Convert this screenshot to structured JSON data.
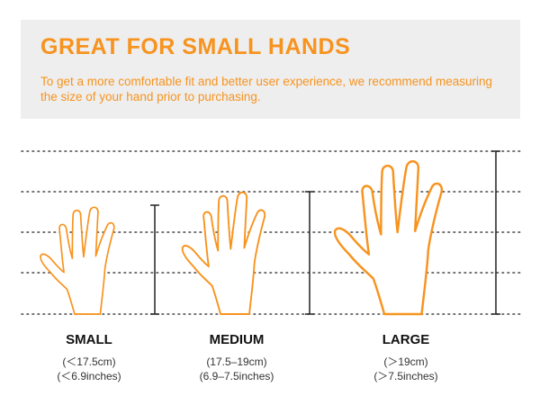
{
  "header": {
    "title": "GREAT FOR SMALL HANDS",
    "description": "To get a more comfortable fit and better user experience, we recommend measuring the size of your hand prior to purchasing."
  },
  "sizes": [
    {
      "label": "SMALL",
      "range_cm": "(＜17.5cm)",
      "range_in": "(＜6.9inches)"
    },
    {
      "label": "MEDIUM",
      "range_cm": "(17.5–19cm)",
      "range_in": "(6.9–7.5inches)"
    },
    {
      "label": "LARGE",
      "range_cm": "(＞19cm)",
      "range_in": "(＞7.5inches)"
    }
  ],
  "colors": {
    "accent": "#f7931e",
    "banner_bg": "#eeeeee",
    "guide": "#444444"
  }
}
